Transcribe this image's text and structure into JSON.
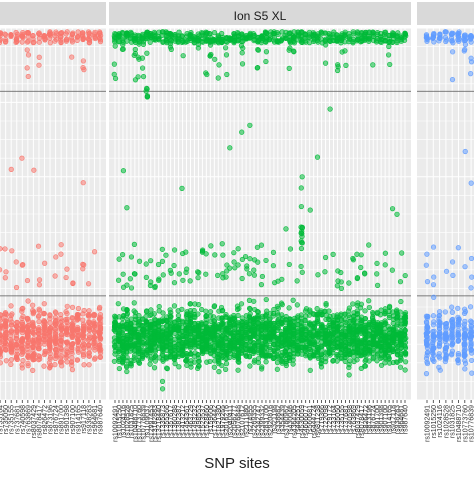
{
  "chart_data": {
    "type": "scatter",
    "title": "",
    "xlabel": "SNP sites",
    "ylabel": "",
    "grid": true,
    "panels": [
      {
        "strip_label": "",
        "color": "#F8766D",
        "cropped": "left",
        "x_ticks": [
          "rs6811238",
          "rs719366",
          "rs722098",
          "rs729172",
          "rs733164",
          "rs735050",
          "rs735155",
          "rs737681",
          "rs740598",
          "rs763869",
          "rs8037429",
          "rs8078417",
          "rs826472",
          "rs873196",
          "rs876724",
          "rs891700",
          "rs901398",
          "rs907100",
          "rs914165",
          "rs917118",
          "rs938283",
          "rs964681",
          "rs987640"
        ],
        "threshold_lines": [
          0.83,
          0.28
        ]
      },
      {
        "strip_label": "Ion S5 XL",
        "color": "#00BA38",
        "cropped": "none",
        "x_ticks": [
          "rs10092491",
          "rs1015250",
          "rs1024116",
          "rs1028528",
          "rs1031825",
          "rs10488710",
          "rs10773760",
          "rs10776839",
          "rs1109037",
          "rs12997453",
          "rs13182883",
          "rs13218440",
          "rs1335873",
          "rs1355366",
          "rs1357617",
          "rs1360288",
          "rs1382387",
          "rs1413212",
          "rs1454361",
          "rs1463729",
          "rs1493232",
          "rs1498553",
          "rs1523537",
          "rs1528460",
          "rs159606",
          "rs1736442",
          "rs1821380",
          "rs1979255",
          "rs2016276",
          "rs2040411",
          "rs2056277",
          "rs2076848",
          "rs2107612",
          "rs2111980",
          "rs214955",
          "rs2269355",
          "rs2342747",
          "rs2399332",
          "rs2831700",
          "rs2920816",
          "rs321198",
          "rs338882",
          "rs354439",
          "rs3780962",
          "rs430046",
          "rs4364205",
          "rs445251",
          "rs4530059",
          "rs4606077",
          "rs560681",
          "rs6444724",
          "rs6811238",
          "rs719366",
          "rs722098",
          "rs729172",
          "rs733164",
          "rs735050",
          "rs735155",
          "rs737681",
          "rs740598",
          "rs763869",
          "rs8037429",
          "rs8078417",
          "rs826472",
          "rs873196",
          "rs876724",
          "rs891700",
          "rs901398",
          "rs907100",
          "rs914165",
          "rs917118",
          "rs938283",
          "rs964681",
          "rs987640"
        ],
        "threshold_lines": [
          0.83,
          0.28
        ]
      },
      {
        "strip_label": "",
        "color": "#619CFF",
        "cropped": "right",
        "x_ticks": [
          "rs10092491",
          "rs1015250",
          "rs1024116",
          "rs1028528",
          "rs1031825",
          "rs10488710",
          "rs10773760",
          "rs10776839"
        ],
        "threshold_lines": [
          0.83,
          0.28
        ]
      }
    ]
  }
}
